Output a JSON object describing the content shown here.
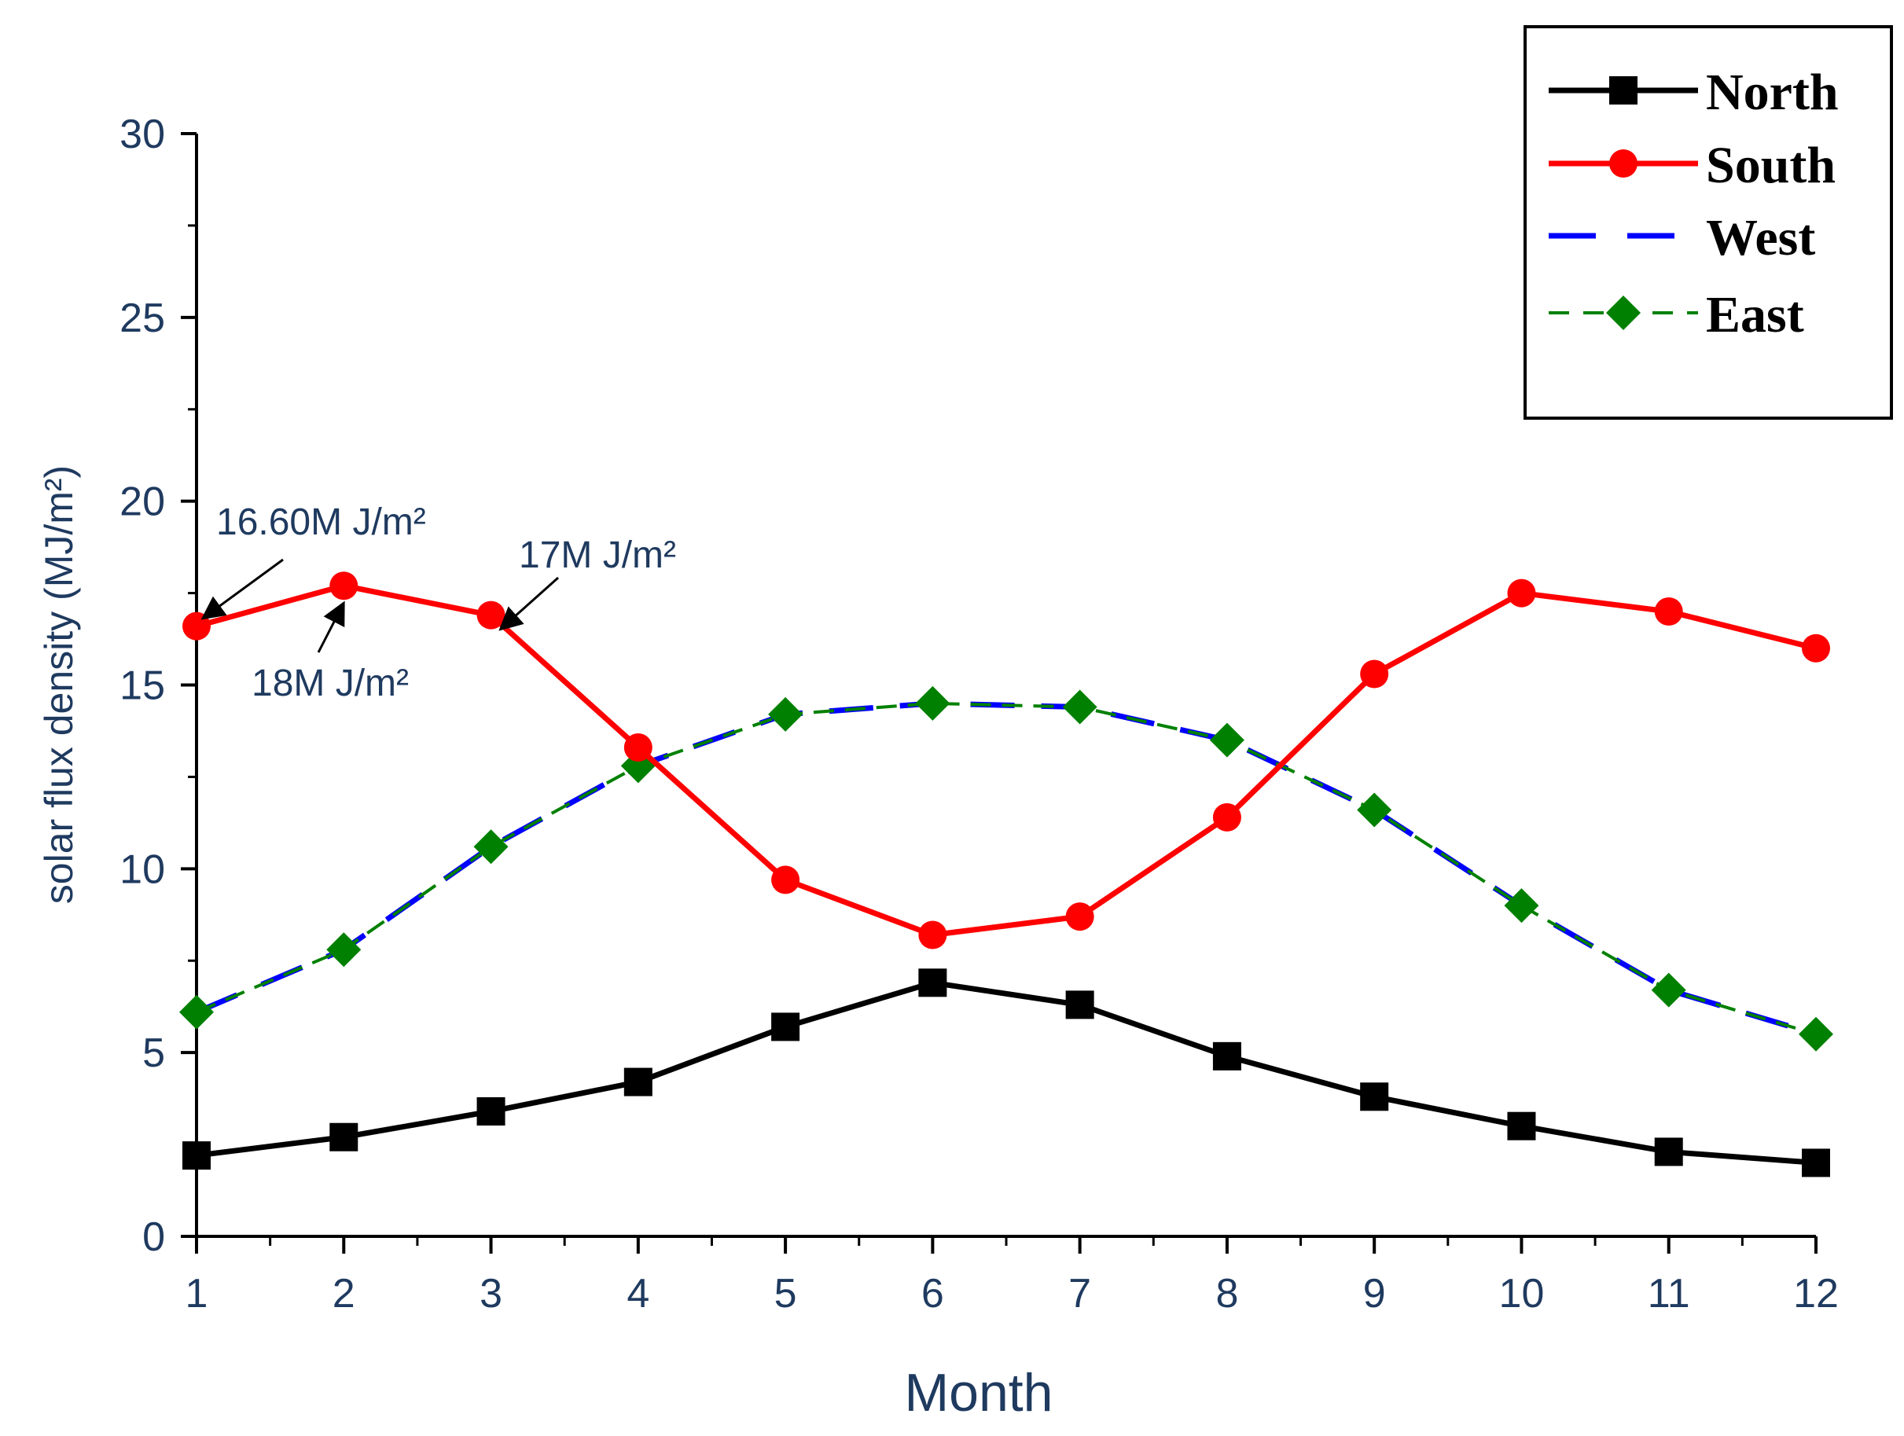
{
  "chart_data": {
    "type": "line",
    "title": "",
    "xlabel": "Month",
    "ylabel": "solar  flux density  (MJ/m²)",
    "xlim": [
      1,
      12
    ],
    "ylim": [
      0,
      30
    ],
    "x_ticks": [
      "1",
      "2",
      "3",
      "4",
      "5",
      "6",
      "7",
      "8",
      "9",
      "10",
      "11",
      "12"
    ],
    "y_ticks": [
      "0",
      "5",
      "10",
      "15",
      "20",
      "25",
      "30"
    ],
    "x": [
      1,
      2,
      3,
      4,
      5,
      6,
      7,
      8,
      9,
      10,
      11,
      12
    ],
    "series": [
      {
        "name": "North",
        "color": "#000000",
        "marker": "square",
        "dash": "solid",
        "values": [
          2.2,
          2.7,
          3.4,
          4.2,
          5.7,
          6.9,
          6.3,
          4.9,
          3.8,
          3.0,
          2.3,
          2.0
        ]
      },
      {
        "name": "South",
        "color": "#ff0000",
        "marker": "circle",
        "dash": "solid",
        "values": [
          16.6,
          17.7,
          16.9,
          13.3,
          9.7,
          8.2,
          8.7,
          11.4,
          15.3,
          17.5,
          17.0,
          16.0
        ]
      },
      {
        "name": "West",
        "color": "#0000ff",
        "marker": "none",
        "dash": "dashed",
        "values": [
          6.1,
          7.8,
          10.6,
          12.8,
          14.2,
          14.5,
          14.4,
          13.5,
          11.6,
          9.0,
          6.7,
          5.5
        ]
      },
      {
        "name": "East",
        "color": "#008000",
        "marker": "diamond",
        "dash": "short-dash",
        "values": [
          6.1,
          7.8,
          10.6,
          12.8,
          14.2,
          14.5,
          14.4,
          13.5,
          11.6,
          9.0,
          6.7,
          5.5
        ]
      }
    ],
    "legend_position": "top-right",
    "annotations": [
      {
        "text": "16.60M J/m²",
        "x": 1,
        "y": 16.6
      },
      {
        "text": "18M J/m²",
        "x": 2,
        "y": 17.7
      },
      {
        "text": "17M J/m²",
        "x": 3,
        "y": 16.9
      }
    ]
  }
}
